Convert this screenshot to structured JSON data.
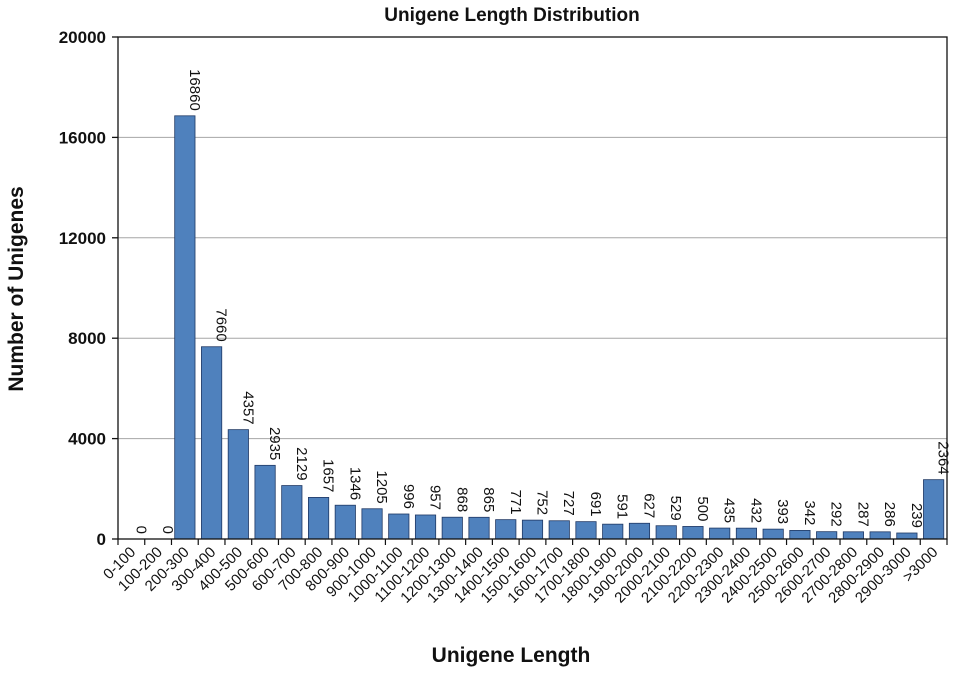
{
  "chart_data": {
    "type": "bar",
    "title": "Unigene Length Distribution",
    "xlabel": "Unigene Length",
    "ylabel": "Number of Unigenes",
    "ylim": [
      0,
      20000
    ],
    "yticks": [
      "0",
      "4000",
      "8000",
      "12000",
      "16000",
      "20000"
    ],
    "grid": true,
    "bar_color": "#4f81bd",
    "categories": [
      "0-100",
      "100-200",
      "200-300",
      "300-400",
      "400-500",
      "500-600",
      "600-700",
      "700-800",
      "800-900",
      "900-1000",
      "1000-1100",
      "1100-1200",
      "1200-1300",
      "1300-1400",
      "1400-1500",
      "1500-1600",
      "1600-1700",
      "1700-1800",
      "1800-1900",
      "1900-2000",
      "2000-2100",
      "2100-2200",
      "2200-2300",
      "2300-2400",
      "2400-2500",
      "2500-2600",
      "2600-2700",
      "2700-2800",
      "2800-2900",
      "2900-3000",
      ">3000"
    ],
    "values": [
      0,
      0,
      16860,
      7660,
      4357,
      2935,
      2129,
      1657,
      1346,
      1205,
      996,
      957,
      868,
      865,
      771,
      752,
      727,
      691,
      591,
      627,
      529,
      500,
      435,
      432,
      393,
      342,
      292,
      287,
      286,
      239,
      2364
    ]
  }
}
